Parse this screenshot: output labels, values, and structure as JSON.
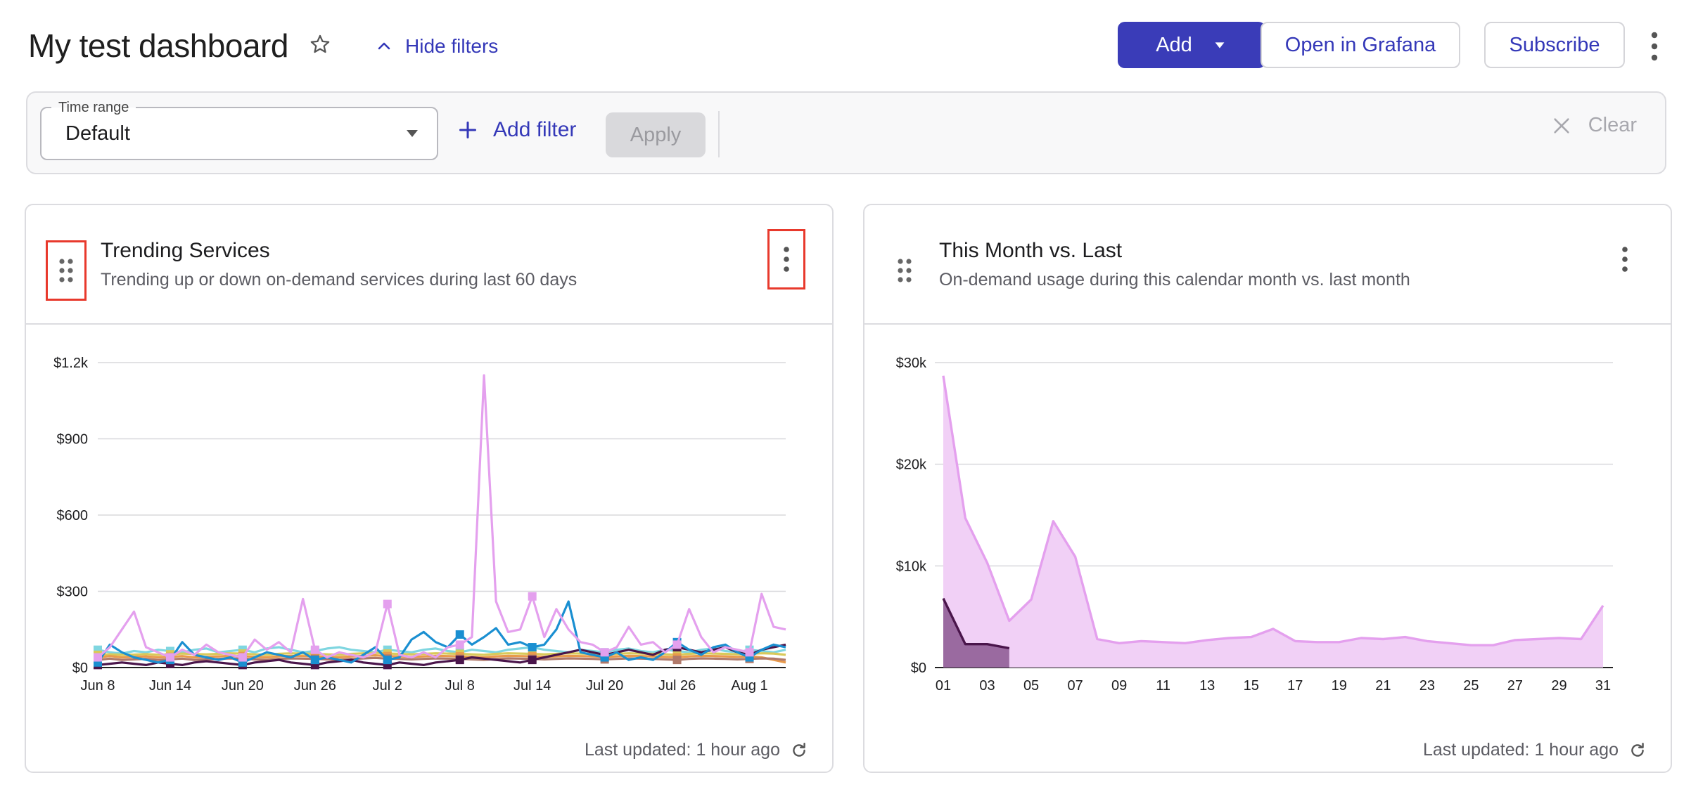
{
  "header": {
    "title": "My test dashboard",
    "hide_filters": "Hide filters",
    "add": "Add",
    "open_grafana": "Open in Grafana",
    "subscribe": "Subscribe"
  },
  "filters": {
    "time_range_label": "Time range",
    "time_range_value": "Default",
    "add_filter": "Add filter",
    "apply": "Apply",
    "clear": "Clear"
  },
  "panels": [
    {
      "title": "Trending Services",
      "subtitle": "Trending up or down on-demand services during last 60 days",
      "last_updated": "Last updated: 1 hour ago"
    },
    {
      "title": "This Month vs. Last",
      "subtitle": "On-demand usage during this calendar month vs. last month",
      "last_updated": "Last updated: 1 hour ago"
    }
  ],
  "colors": {
    "primary": "#3a3cb8",
    "highlight_border": "#e8392c"
  },
  "chart_data": [
    {
      "type": "line",
      "ylim": [
        0,
        1200
      ],
      "y_ticks": [
        "$0",
        "$300",
        "$600",
        "$900",
        "$1.2k"
      ],
      "y_tick_values": [
        0,
        300,
        600,
        900,
        1200
      ],
      "x_ticks": [
        "Jun 8",
        "Jun 14",
        "Jun 20",
        "Jun 26",
        "Jul 2",
        "Jul 8",
        "Jul 14",
        "Jul 20",
        "Jul 26",
        "Aug 1"
      ],
      "grid": true,
      "n_points": 58,
      "series": [
        {
          "color": "#e4a0ee",
          "values": [
            40,
            80,
            150,
            220,
            80,
            60,
            40,
            70,
            50,
            90,
            60,
            50,
            40,
            110,
            70,
            100,
            60,
            270,
            70,
            40,
            60,
            50,
            40,
            60,
            250,
            50,
            40,
            60,
            40,
            80,
            90,
            120,
            1150,
            260,
            140,
            150,
            280,
            120,
            230,
            150,
            100,
            90,
            60,
            80,
            160,
            90,
            100,
            60,
            90,
            230,
            120,
            60,
            80,
            70,
            60,
            290,
            160,
            150
          ]
        },
        {
          "color": "#1a8fd1",
          "values": [
            20,
            90,
            60,
            40,
            30,
            20,
            30,
            100,
            50,
            40,
            30,
            40,
            20,
            40,
            60,
            50,
            40,
            60,
            30,
            40,
            30,
            20,
            50,
            80,
            30,
            40,
            110,
            140,
            100,
            80,
            130,
            90,
            120,
            155,
            90,
            100,
            80,
            90,
            150,
            260,
            60,
            50,
            40,
            60,
            30,
            40,
            30,
            60,
            100,
            70,
            50,
            80,
            90,
            60,
            40,
            70,
            90,
            80
          ]
        },
        {
          "color": "#7fd6e0",
          "values": [
            70,
            60,
            55,
            65,
            60,
            70,
            65,
            60,
            70,
            75,
            60,
            65,
            70,
            60,
            75,
            80,
            70,
            60,
            65,
            75,
            80,
            70,
            65,
            60,
            70,
            65,
            60,
            70,
            75,
            65,
            60,
            70,
            65,
            60,
            70,
            75,
            80,
            70,
            65,
            60,
            70,
            65,
            60,
            70,
            75,
            65,
            60,
            70,
            65,
            60,
            70,
            75,
            65,
            60,
            70,
            65,
            60,
            70
          ]
        },
        {
          "color": "#4a154b",
          "values": [
            10,
            15,
            20,
            15,
            10,
            20,
            15,
            10,
            20,
            25,
            20,
            15,
            10,
            20,
            25,
            30,
            20,
            15,
            10,
            20,
            25,
            30,
            20,
            15,
            10,
            20,
            15,
            10,
            20,
            25,
            30,
            40,
            35,
            30,
            25,
            20,
            30,
            40,
            50,
            60,
            70,
            60,
            50,
            60,
            70,
            60,
            50,
            70,
            80,
            70,
            60,
            70,
            80,
            60,
            50,
            70,
            80,
            90
          ]
        },
        {
          "color": "#e89a4c",
          "values": [
            40,
            45,
            40,
            42,
            44,
            40,
            42,
            45,
            40,
            42,
            44,
            46,
            45,
            42,
            40,
            44,
            46,
            45,
            44,
            42,
            40,
            44,
            46,
            48,
            45,
            44,
            42,
            44,
            46,
            45,
            44,
            42,
            40,
            44,
            46,
            45,
            44,
            42,
            44,
            46,
            45,
            44,
            42,
            44,
            46,
            45,
            44,
            42,
            40,
            44,
            46,
            45,
            44,
            42,
            44,
            40,
            30,
            20
          ]
        },
        {
          "color": "#b0796a",
          "values": [
            30,
            35,
            30,
            32,
            34,
            30,
            32,
            35,
            30,
            32,
            34,
            36,
            35,
            32,
            30,
            34,
            36,
            35,
            34,
            32,
            30,
            34,
            36,
            38,
            35,
            34,
            32,
            34,
            36,
            35,
            34,
            32,
            30,
            34,
            36,
            35,
            34,
            32,
            34,
            36,
            35,
            34,
            32,
            34,
            36,
            35,
            34,
            32,
            30,
            34,
            36,
            35,
            34,
            32,
            34,
            36,
            35,
            30
          ]
        },
        {
          "color": "#d9c95a",
          "values": [
            50,
            52,
            50,
            51,
            53,
            50,
            52,
            55,
            53,
            52,
            54,
            56,
            55,
            52,
            50,
            54,
            56,
            55,
            54,
            52,
            50,
            54,
            56,
            58,
            55,
            54,
            52,
            54,
            56,
            55,
            54,
            52,
            50,
            54,
            56,
            55,
            54,
            52,
            54,
            56,
            55,
            54,
            52,
            54,
            56,
            55,
            54,
            52,
            50,
            54,
            56,
            55,
            54,
            52,
            54,
            56,
            55,
            50
          ]
        }
      ]
    },
    {
      "type": "area",
      "ylim": [
        0,
        30000
      ],
      "y_ticks": [
        "$0",
        "$10k",
        "$20k",
        "$30k"
      ],
      "y_tick_values": [
        0,
        10000,
        20000,
        30000
      ],
      "x_ticks": [
        "01",
        "03",
        "05",
        "07",
        "09",
        "11",
        "13",
        "15",
        "17",
        "19",
        "21",
        "23",
        "25",
        "27",
        "29",
        "31"
      ],
      "grid": true,
      "days": 31,
      "series": [
        {
          "color": "#e4a0ee",
          "fill": "#f1d0f6",
          "values": [
            28700,
            14700,
            10300,
            4600,
            6700,
            14400,
            10900,
            2800,
            2400,
            2600,
            2500,
            2400,
            2700,
            2900,
            3000,
            3800,
            2600,
            2500,
            2500,
            2900,
            2800,
            3000,
            2600,
            2400,
            2200,
            2200,
            2700,
            2800,
            2900,
            2800,
            6100
          ]
        },
        {
          "color": "#4a154b",
          "fill": "#9a6aa0",
          "values": [
            6800,
            2300,
            2300,
            1900
          ]
        }
      ]
    }
  ]
}
